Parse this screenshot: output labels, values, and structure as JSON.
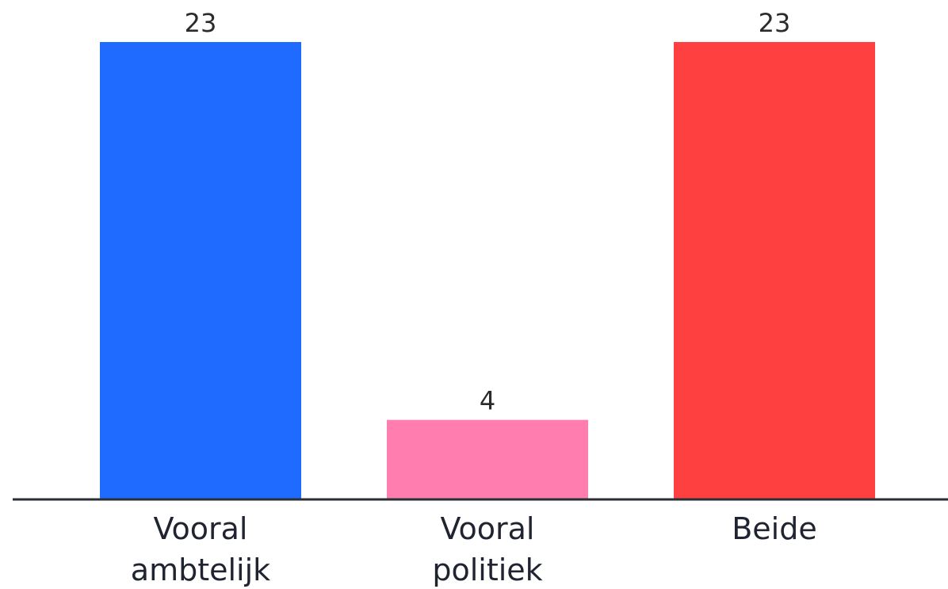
{
  "chart_data": {
    "type": "bar",
    "categories": [
      [
        "Vooral",
        "ambtelijk"
      ],
      [
        "Vooral",
        "politiek"
      ],
      [
        "Beide"
      ]
    ],
    "values": [
      23,
      4,
      23
    ],
    "colors": [
      "#1f6bff",
      "#ff7eaf",
      "#ff4040"
    ],
    "axis_color": "#2a2f36",
    "ylim": [
      0,
      23
    ],
    "grid": false,
    "legend": "none"
  }
}
